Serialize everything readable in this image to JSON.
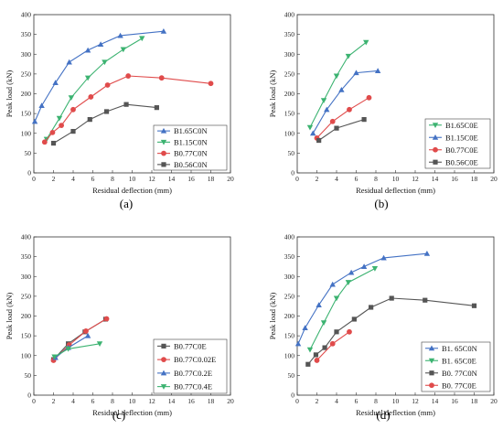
{
  "chart_data": [
    {
      "panel": "a",
      "type": "line",
      "caption": "(a)",
      "xlabel": "Residual deflection (mm)",
      "ylabel": "Peak load (kN)",
      "xlim": [
        0,
        20
      ],
      "ylim": [
        0,
        400
      ],
      "xticks": [
        0,
        2,
        4,
        6,
        8,
        10,
        12,
        14,
        16,
        18,
        20
      ],
      "yticks": [
        0,
        50,
        100,
        150,
        200,
        250,
        300,
        350,
        400
      ],
      "legend_position": "bottom-right",
      "series": [
        {
          "name": "B1.65C0N",
          "color": "#4472C4",
          "marker": "triangle-up",
          "x": [
            0.1,
            0.8,
            2.2,
            3.6,
            5.5,
            6.8,
            8.8,
            13.2
          ],
          "y": [
            130,
            170,
            228,
            280,
            310,
            325,
            347,
            358
          ]
        },
        {
          "name": "B1.15C0N",
          "color": "#3CB371",
          "marker": "triangle-down",
          "x": [
            1.3,
            2.6,
            3.8,
            5.5,
            7.2,
            9.1,
            11.0
          ],
          "y": [
            85,
            138,
            190,
            240,
            280,
            312,
            340
          ]
        },
        {
          "name": "B0.77C0N",
          "color": "#E04B4B",
          "marker": "circle",
          "x": [
            1.1,
            1.9,
            2.8,
            4.0,
            5.8,
            7.5,
            9.6,
            13.0,
            18.0
          ],
          "y": [
            78,
            102,
            120,
            160,
            192,
            222,
            245,
            240,
            226
          ]
        },
        {
          "name": "B0.56C0N",
          "color": "#555555",
          "marker": "square",
          "x": [
            2.0,
            4.0,
            5.7,
            7.4,
            9.4,
            12.5
          ],
          "y": [
            75,
            105,
            135,
            155,
            173,
            165
          ]
        }
      ]
    },
    {
      "panel": "b",
      "type": "line",
      "caption": "(b)",
      "xlabel": "Residual deflection (mm)",
      "ylabel": "Peak load (kN)",
      "xlim": [
        0,
        20
      ],
      "ylim": [
        0,
        400
      ],
      "xticks": [
        0,
        2,
        4,
        6,
        8,
        10,
        12,
        14,
        16,
        18,
        20
      ],
      "yticks": [
        0,
        50,
        100,
        150,
        200,
        250,
        300,
        350,
        400
      ],
      "legend_position": "bottom-right",
      "series": [
        {
          "name": "B1.65C0E",
          "color": "#3CB371",
          "marker": "triangle-down",
          "x": [
            1.3,
            2.7,
            4.0,
            5.2,
            7.0
          ],
          "y": [
            115,
            183,
            245,
            295,
            330
          ]
        },
        {
          "name": "B1.15C0E",
          "color": "#4472C4",
          "marker": "triangle-up",
          "x": [
            1.6,
            3.0,
            4.5,
            6.0,
            8.2
          ],
          "y": [
            100,
            160,
            210,
            253,
            258
          ]
        },
        {
          "name": "B0.77C0E",
          "color": "#E04B4B",
          "marker": "circle",
          "x": [
            2.0,
            3.6,
            5.3,
            7.3
          ],
          "y": [
            88,
            130,
            160,
            190
          ]
        },
        {
          "name": "B0.56C0E",
          "color": "#555555",
          "marker": "square",
          "x": [
            2.2,
            4.0,
            6.8
          ],
          "y": [
            82,
            113,
            135
          ]
        }
      ]
    },
    {
      "panel": "c",
      "type": "line",
      "caption": "(c)",
      "xlabel": "Residual deflection (mm)",
      "ylabel": "Peak load (kN)",
      "xlim": [
        0,
        20
      ],
      "ylim": [
        0,
        400
      ],
      "xticks": [
        0,
        2,
        4,
        6,
        8,
        10,
        12,
        14,
        16,
        18,
        20
      ],
      "yticks": [
        0,
        50,
        100,
        150,
        200,
        250,
        300,
        350,
        400
      ],
      "legend_position": "bottom-right",
      "series": [
        {
          "name": "B0.77C0E",
          "color": "#555555",
          "marker": "square",
          "x": [
            2.0,
            3.5,
            5.2,
            7.3
          ],
          "y": [
            90,
            130,
            160,
            192
          ]
        },
        {
          "name": "B0.77C0.02E",
          "color": "#E04B4B",
          "marker": "circle",
          "x": [
            2.0,
            3.6,
            5.3,
            7.4
          ],
          "y": [
            88,
            127,
            162,
            193
          ]
        },
        {
          "name": "B0.77C0.2E",
          "color": "#4472C4",
          "marker": "triangle-up",
          "x": [
            2.2,
            3.5,
            5.5
          ],
          "y": [
            95,
            120,
            150
          ]
        },
        {
          "name": "B0.77C0.4E",
          "color": "#3CB371",
          "marker": "triangle-down",
          "x": [
            2.1,
            3.5,
            6.7
          ],
          "y": [
            97,
            117,
            130
          ]
        }
      ]
    },
    {
      "panel": "d",
      "type": "line",
      "caption": "(d)",
      "xlabel": "Residual deflection (mm)",
      "ylabel": "Peak load (kN)",
      "xlim": [
        0,
        20
      ],
      "ylim": [
        0,
        400
      ],
      "xticks": [
        0,
        2,
        4,
        6,
        8,
        10,
        12,
        14,
        16,
        18,
        20
      ],
      "yticks": [
        0,
        50,
        100,
        150,
        200,
        250,
        300,
        350,
        400
      ],
      "legend_position": "bottom-right",
      "series": [
        {
          "name": "B1. 65C0N",
          "color": "#4472C4",
          "marker": "triangle-up",
          "x": [
            0.1,
            0.8,
            2.2,
            3.6,
            5.5,
            6.8,
            8.8,
            13.2
          ],
          "y": [
            130,
            170,
            228,
            280,
            310,
            325,
            347,
            358
          ]
        },
        {
          "name": "B1. 65C0E",
          "color": "#3CB371",
          "marker": "triangle-down",
          "x": [
            1.3,
            2.7,
            4.0,
            5.2,
            7.9
          ],
          "y": [
            115,
            183,
            245,
            285,
            320
          ]
        },
        {
          "name": "B0. 77C0N",
          "color": "#555555",
          "marker": "square",
          "x": [
            1.1,
            1.9,
            2.8,
            4.0,
            5.8,
            7.5,
            9.6,
            13.0,
            18.0
          ],
          "y": [
            78,
            102,
            120,
            160,
            192,
            222,
            245,
            240,
            226
          ]
        },
        {
          "name": "B0. 77C0E",
          "color": "#E04B4B",
          "marker": "circle",
          "x": [
            2.0,
            3.6,
            5.3
          ],
          "y": [
            88,
            130,
            160
          ]
        }
      ]
    }
  ]
}
